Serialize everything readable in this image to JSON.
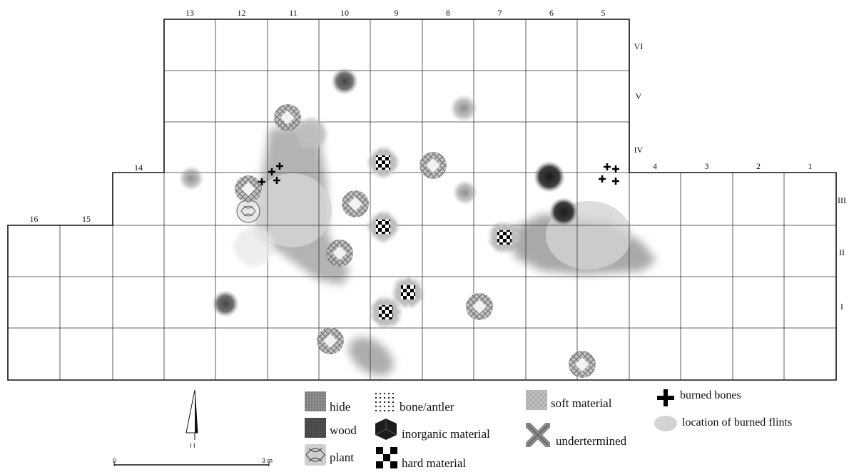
{
  "grid": {
    "column_labels": [
      "16",
      "15",
      "14",
      "13",
      "12",
      "11",
      "10",
      "9",
      "8",
      "7",
      "6",
      "5",
      "4",
      "3",
      "2",
      "1"
    ],
    "row_labels": [
      "I",
      "II",
      "III",
      "IV",
      "V",
      "VI"
    ]
  },
  "legend": {
    "hide": "hide",
    "wood": "wood",
    "plant": "plant",
    "bone": "bone/antler",
    "inorganic": "inorganic material",
    "hard": "hard material",
    "soft": "soft material",
    "undetermined": "undertermined",
    "burned_bones": "burned bones",
    "burned_flints": "location of burned flints"
  },
  "scale": {
    "start": "0",
    "end": "3 m"
  },
  "north_arrow": {
    "label": "I I"
  },
  "colors": {
    "grid_line": "#222222",
    "hide": "#8a8a8a",
    "wood": "#4a4a4a",
    "burned_flints": "#d0d0d0",
    "cross": "#000000"
  }
}
